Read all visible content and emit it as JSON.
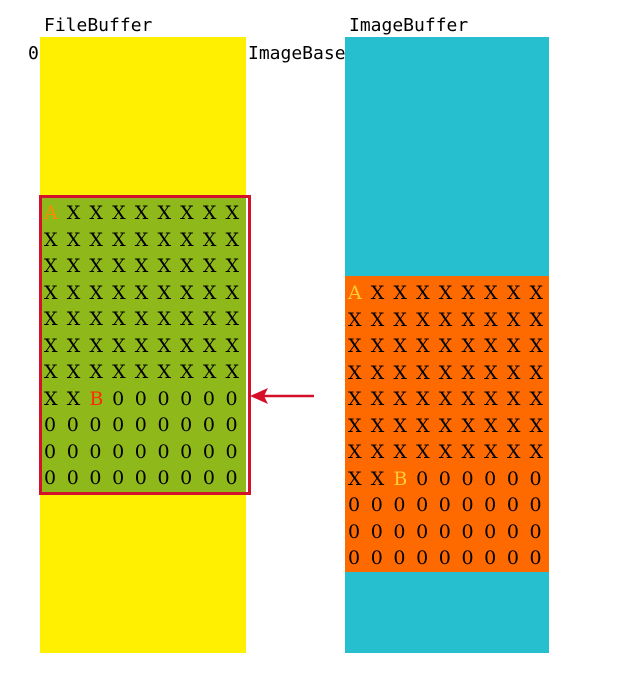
{
  "labels": {
    "file_buffer": "FileBuffer",
    "image_buffer": "ImageBuffer",
    "zero": "0",
    "image_base": "ImageBase"
  },
  "colors": {
    "file_column": "#ffef00",
    "file_block": "#8fb81a",
    "image_column": "#25bfcf",
    "image_block": "#ff6a00",
    "highlight_border": "#d4102a",
    "arrow": "#d4102a"
  },
  "file_grid": [
    [
      "A",
      "X",
      "X",
      "X",
      "X",
      "X",
      "X",
      "X",
      "X"
    ],
    [
      "X",
      "X",
      "X",
      "X",
      "X",
      "X",
      "X",
      "X",
      "X"
    ],
    [
      "X",
      "X",
      "X",
      "X",
      "X",
      "X",
      "X",
      "X",
      "X"
    ],
    [
      "X",
      "X",
      "X",
      "X",
      "X",
      "X",
      "X",
      "X",
      "X"
    ],
    [
      "X",
      "X",
      "X",
      "X",
      "X",
      "X",
      "X",
      "X",
      "X"
    ],
    [
      "X",
      "X",
      "X",
      "X",
      "X",
      "X",
      "X",
      "X",
      "X"
    ],
    [
      "X",
      "X",
      "X",
      "X",
      "X",
      "X",
      "X",
      "X",
      "X"
    ],
    [
      "X",
      "X",
      "B",
      "0",
      "0",
      "0",
      "0",
      "0",
      "0"
    ],
    [
      "0",
      "0",
      "0",
      "0",
      "0",
      "0",
      "0",
      "0",
      "0"
    ],
    [
      "0",
      "0",
      "0",
      "0",
      "0",
      "0",
      "0",
      "0",
      "0"
    ],
    [
      "0",
      "0",
      "0",
      "0",
      "0",
      "0",
      "0",
      "0",
      "0"
    ]
  ],
  "image_grid": [
    [
      "A",
      "X",
      "X",
      "X",
      "X",
      "X",
      "X",
      "X",
      "X"
    ],
    [
      "X",
      "X",
      "X",
      "X",
      "X",
      "X",
      "X",
      "X",
      "X"
    ],
    [
      "X",
      "X",
      "X",
      "X",
      "X",
      "X",
      "X",
      "X",
      "X"
    ],
    [
      "X",
      "X",
      "X",
      "X",
      "X",
      "X",
      "X",
      "X",
      "X"
    ],
    [
      "X",
      "X",
      "X",
      "X",
      "X",
      "X",
      "X",
      "X",
      "X"
    ],
    [
      "X",
      "X",
      "X",
      "X",
      "X",
      "X",
      "X",
      "X",
      "X"
    ],
    [
      "X",
      "X",
      "X",
      "X",
      "X",
      "X",
      "X",
      "X",
      "X"
    ],
    [
      "X",
      "X",
      "B",
      "0",
      "0",
      "0",
      "0",
      "0",
      "0"
    ],
    [
      "0",
      "0",
      "0",
      "0",
      "0",
      "0",
      "0",
      "0",
      "0"
    ],
    [
      "0",
      "0",
      "0",
      "0",
      "0",
      "0",
      "0",
      "0",
      "0"
    ],
    [
      "0",
      "0",
      "0",
      "0",
      "0",
      "0",
      "0",
      "0",
      "0"
    ]
  ]
}
